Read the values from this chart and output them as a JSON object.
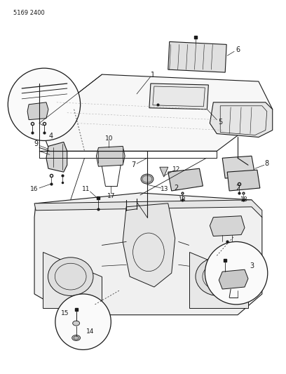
{
  "title": "5169 2400",
  "bg": "#ffffff",
  "lc": "#1a1a1a",
  "fig_w": 4.08,
  "fig_h": 5.33,
  "dpi": 100
}
